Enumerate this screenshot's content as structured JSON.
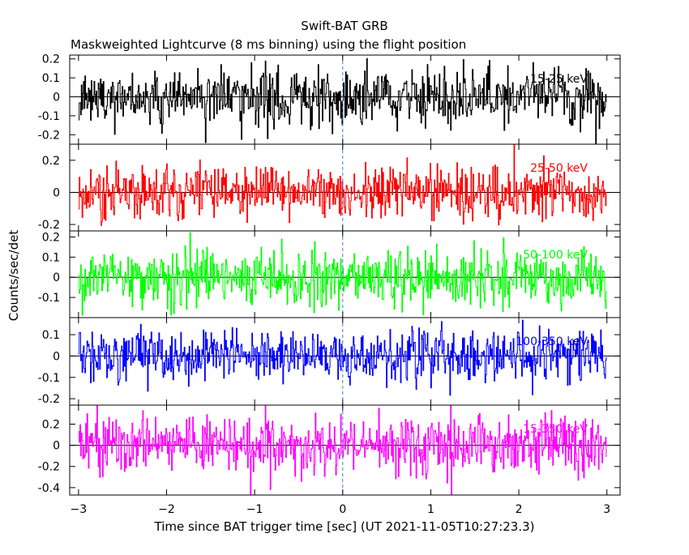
{
  "chart_data": {
    "type": "line",
    "title": "Swift-BAT GRB",
    "subtitle": "Maskweighted Lightcurve (8 ms binning) using the flight position",
    "xlabel": "Time since BAT trigger time [sec] (UT 2021-11-05T10:27:23.3)",
    "ylabel": "Counts/sec/det",
    "xlim": [
      -3.1,
      3.15
    ],
    "x_ticks": [
      "-3",
      "-2",
      "-1",
      "0",
      "1",
      "2",
      "3"
    ],
    "x_tick_values": [
      -3,
      -2,
      -1,
      0,
      1,
      2,
      3
    ],
    "bin_size_sec": 0.008,
    "x_range": [
      -3,
      3
    ],
    "trigger_marker_x": 0,
    "zero_line": true,
    "panels": [
      {
        "name": "15-25 keV",
        "color": "#000000",
        "ylim": [
          -0.25,
          0.22
        ],
        "y_ticks": [
          "0.2",
          "0.1",
          "0",
          "-0.1",
          "-0.2"
        ],
        "y_tick_values": [
          0.2,
          0.1,
          0,
          -0.1,
          -0.2
        ],
        "noise_sigma": 0.07,
        "mean": 0
      },
      {
        "name": "25-50 keV",
        "color": "#ff0000",
        "ylim": [
          -0.24,
          0.3
        ],
        "y_ticks": [
          "0.2",
          "0",
          "-0.2"
        ],
        "y_tick_values": [
          0.2,
          0,
          -0.2
        ],
        "noise_sigma": 0.08,
        "mean": 0
      },
      {
        "name": "50-100 keV",
        "color": "#00ff00",
        "ylim": [
          -0.2,
          0.23
        ],
        "y_ticks": [
          "0.2",
          "0.1",
          "0",
          "-0.1"
        ],
        "y_tick_values": [
          0.2,
          0.1,
          0,
          -0.1
        ],
        "noise_sigma": 0.07,
        "mean": 0
      },
      {
        "name": "100-350 keV",
        "color": "#0000ff",
        "ylim": [
          -0.23,
          0.18
        ],
        "y_ticks": [
          "0.1",
          "0",
          "-0.1",
          "-0.2"
        ],
        "y_tick_values": [
          0.1,
          0,
          -0.1,
          -0.2
        ],
        "noise_sigma": 0.06,
        "mean": 0
      },
      {
        "name": "15-350 keV",
        "color": "#ff00ff",
        "ylim": [
          -0.47,
          0.38
        ],
        "y_ticks": [
          "0.2",
          "0",
          "-0.2",
          "-0.4"
        ],
        "y_tick_values": [
          0.2,
          0,
          -0.2,
          -0.4
        ],
        "noise_sigma": 0.13,
        "mean": 0
      }
    ]
  }
}
